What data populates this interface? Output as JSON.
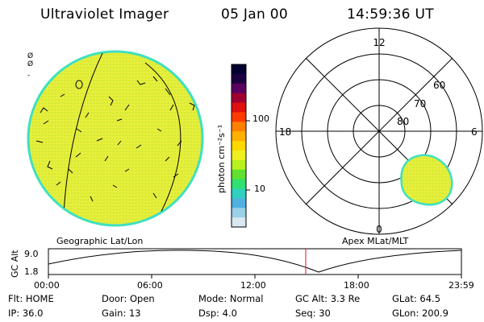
{
  "header": {
    "instrument": "Ultraviolet Imager",
    "date": "05 Jan 00",
    "time": "14:59:36 UT"
  },
  "colors": {
    "fill": "#e6ee3a",
    "edge": "#3fe0c0",
    "accent_red": "#e01010"
  },
  "geo_panel": {
    "label": "Geographic Lat/Lon",
    "side_marks": [
      "Ø",
      "Ø",
      "-"
    ]
  },
  "colorbar": {
    "unit_label": "photon cm⁻²s⁻¹",
    "tick_100": "100",
    "tick_10": "10",
    "scale": "log",
    "stops": [
      "#000030",
      "#1a0040",
      "#5a0060",
      "#a00030",
      "#e01010",
      "#ff3a00",
      "#ff8000",
      "#ffb000",
      "#ffd800",
      "#f0f020",
      "#b8f020",
      "#60e030",
      "#30e070",
      "#30d0c0",
      "#50b0e0",
      "#9ad0e8",
      "#d8e8f0"
    ]
  },
  "polar_panel": {
    "label": "Apex  MLat/MLT",
    "mlt_top": "12",
    "mlt_left": "18",
    "mlt_right": "6",
    "mlt_bottom": "0",
    "lat_60": "60",
    "lat_70": "70",
    "lat_80": "80"
  },
  "altitude_plot": {
    "axis_label": "GC Alt",
    "y_max": "9.0",
    "y_min": "1.8",
    "x_ticks": [
      "00:00",
      "06:00",
      "12:00",
      "18:00",
      "23:59"
    ]
  },
  "status": {
    "row1": [
      {
        "key": "flt",
        "text": "Flt: HOME"
      },
      {
        "key": "door",
        "text": "Door: Open"
      },
      {
        "key": "mode",
        "text": "Mode: Normal"
      },
      {
        "key": "gcalt",
        "text": "GC Alt: 3.3 Re"
      },
      {
        "key": "glat",
        "text": "GLat:  64.5"
      }
    ],
    "row2": [
      {
        "key": "ip",
        "text": "IP: 36.0"
      },
      {
        "key": "gain",
        "text": "Gain: 13"
      },
      {
        "key": "dsp",
        "text": "Dsp:    4.0"
      },
      {
        "key": "seq",
        "text": "Seq: 30"
      },
      {
        "key": "glon",
        "text": "GLon: 200.9"
      }
    ]
  }
}
